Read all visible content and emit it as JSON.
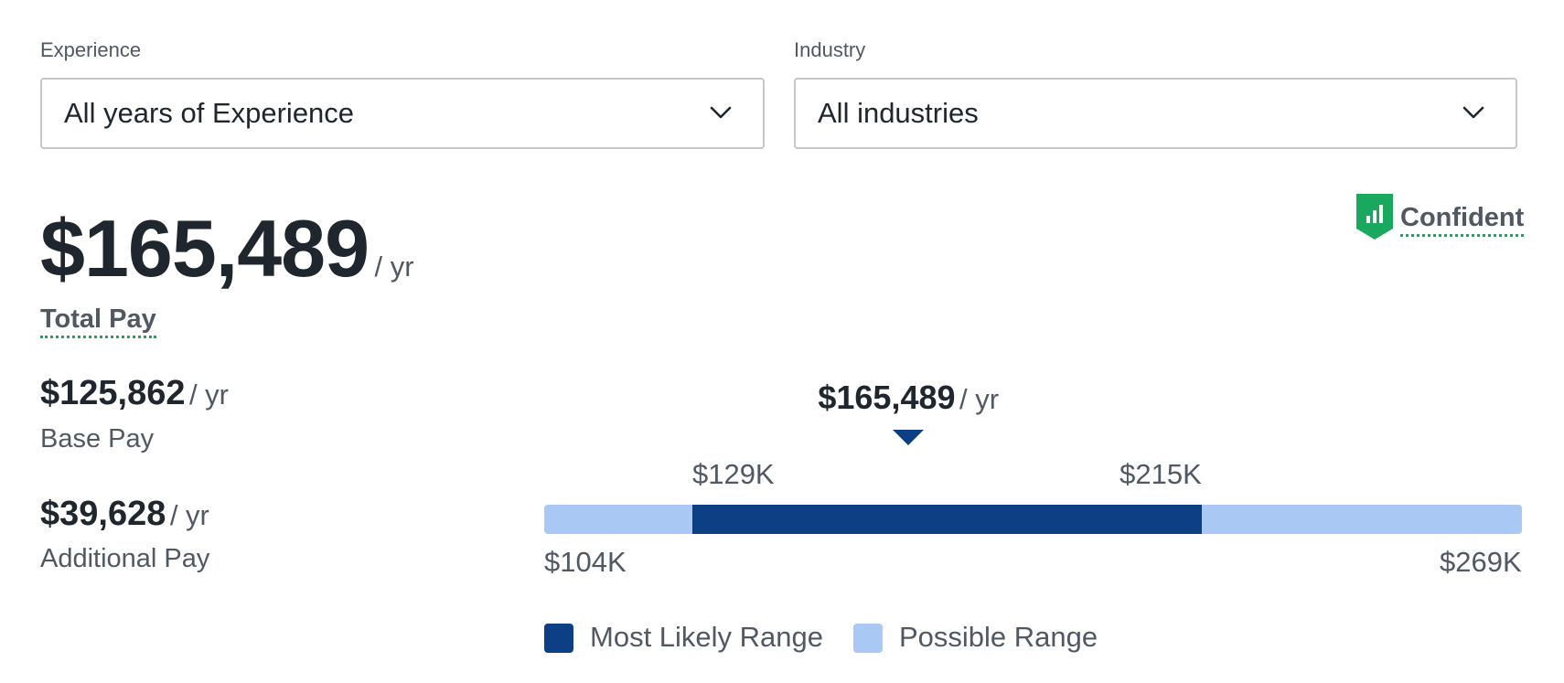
{
  "filters": {
    "experience": {
      "label": "Experience",
      "value": "All years of Experience"
    },
    "industry": {
      "label": "Industry",
      "value": "All industries"
    }
  },
  "total_pay": {
    "amount": "$165,489",
    "per": "/ yr",
    "label": "Total Pay"
  },
  "confidence": {
    "label": "Confident",
    "icon": "bar-chart-shield-icon",
    "color": "#1aa85f"
  },
  "base_pay": {
    "amount": "$125,862",
    "per": "/ yr",
    "label": "Base Pay"
  },
  "additional_pay": {
    "amount": "$39,628",
    "per": "/ yr",
    "label": "Additional Pay"
  },
  "range": {
    "median_amount": "$165,489",
    "median_per": "/ yr",
    "likely_low_label": "$129K",
    "likely_high_label": "$215K",
    "possible_low_label": "$104K",
    "possible_high_label": "$269K",
    "possible_min": 104,
    "likely_min": 129,
    "median": 165.489,
    "likely_max": 215,
    "possible_max": 269,
    "colors": {
      "likely": "#0d3f84",
      "possible": "#a9c9f4"
    }
  },
  "legend": {
    "likely_label": "Most Likely Range",
    "possible_label": "Possible Range"
  }
}
